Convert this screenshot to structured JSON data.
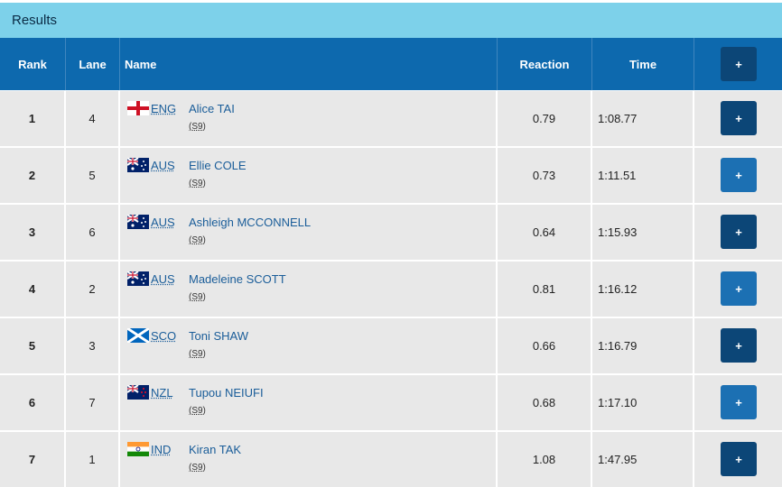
{
  "header": {
    "title": "Results"
  },
  "table": {
    "columns": [
      "Rank",
      "Lane",
      "Name",
      "Reaction",
      "Time"
    ],
    "button_label": "+",
    "rows": [
      {
        "rank": 1,
        "lane": 4,
        "country": "ENG",
        "name": "Alice TAI",
        "class": "(S9)",
        "reaction": 0.79,
        "time": "1:08.77"
      },
      {
        "rank": 2,
        "lane": 5,
        "country": "AUS",
        "name": "Ellie COLE",
        "class": "(S9)",
        "reaction": 0.73,
        "time": "1:11.51"
      },
      {
        "rank": 3,
        "lane": 6,
        "country": "AUS",
        "name": "Ashleigh MCCONNELL",
        "class": "(S9)",
        "reaction": 0.64,
        "time": "1:15.93"
      },
      {
        "rank": 4,
        "lane": 2,
        "country": "AUS",
        "name": "Madeleine SCOTT",
        "class": "(S9)",
        "reaction": 0.81,
        "time": "1:16.12"
      },
      {
        "rank": 5,
        "lane": 3,
        "country": "SCO",
        "name": "Toni SHAW",
        "class": "(S9)",
        "reaction": 0.66,
        "time": "1:16.79"
      },
      {
        "rank": 6,
        "lane": 7,
        "country": "NZL",
        "name": "Tupou NEIUFI",
        "class": "(S9)",
        "reaction": 0.68,
        "time": "1:17.10"
      },
      {
        "rank": 7,
        "lane": 1,
        "country": "IND",
        "name": "Kiran TAK",
        "class": "(S9)",
        "reaction": 1.08,
        "time": "1:47.95"
      }
    ]
  }
}
